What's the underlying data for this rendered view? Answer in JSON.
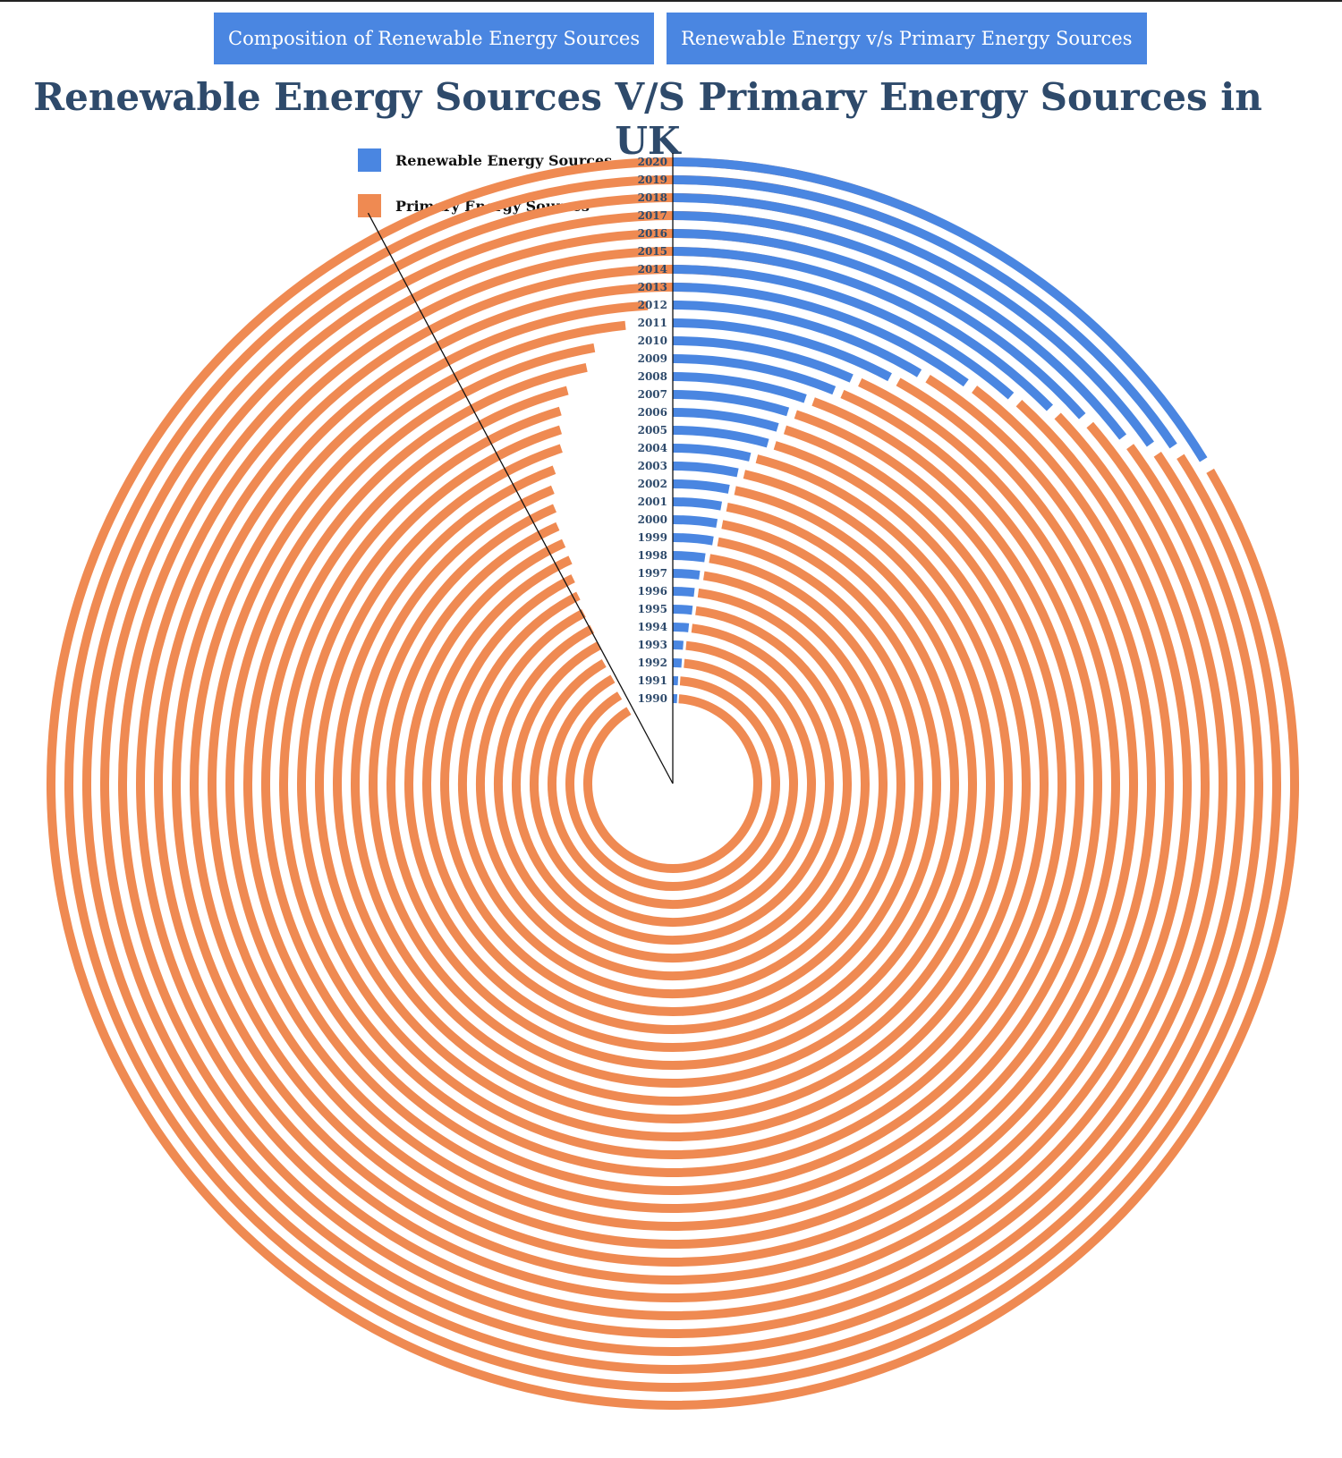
{
  "tabs": [
    {
      "label": "Composition of Renewable Energy Sources"
    },
    {
      "label": "Renewable Energy v/s Primary Energy Sources"
    }
  ],
  "title": "Renewable Energy Sources V/S Primary Energy Sources in UK",
  "colors": {
    "renewable": "#4a86e1",
    "primary": "#ef8a52",
    "tab_bg": "#4a86e1",
    "title": "#2e4a6b"
  },
  "legend": [
    {
      "label": "Renewable Energy Sources",
      "color": "#4a86e1"
    },
    {
      "label": "Primary Energy Sources",
      "color": "#ef8a52"
    }
  ],
  "chart_data": {
    "type": "radial-bar",
    "title": "Renewable Energy Sources V/S Primary Energy Sources in UK",
    "scale_max_degrees": 360,
    "categories": [
      "1990",
      "1991",
      "1992",
      "1993",
      "1994",
      "1995",
      "1996",
      "1997",
      "1998",
      "1999",
      "2000",
      "2001",
      "2002",
      "2003",
      "2004",
      "2005",
      "2006",
      "2007",
      "2008",
      "2009",
      "2010",
      "2011",
      "2012",
      "2013",
      "2014",
      "2015",
      "2016",
      "2017",
      "2018",
      "2019",
      "2020"
    ],
    "series": [
      {
        "name": "Renewable Energy Sources",
        "color": "#4a86e1",
        "values": [
          2.9,
          2.9,
          4.2,
          4.3,
          5.8,
          6.4,
          6.4,
          7.3,
          8.1,
          9.4,
          9.6,
          9.9,
          10.8,
          11.8,
          13.3,
          15.6,
          16.4,
          17.2,
          19.0,
          22.3,
          23.8,
          28.1,
          31.0,
          36.2,
          41.1,
          45.1,
          48.1,
          52.4,
          54.6,
          56.0,
          58.6
        ]
      },
      {
        "name": "Primary Energy Sources",
        "color": "#ef8a52",
        "values": [
          326,
          326,
          326,
          326,
          326,
          326,
          326,
          326,
          326,
          326,
          326,
          326,
          326,
          326,
          326,
          326,
          326,
          326,
          326,
          326,
          326,
          326,
          326,
          326,
          326,
          326,
          326,
          326,
          326,
          326,
          326
        ]
      }
    ],
    "legend_position": "top-left",
    "grid": false
  }
}
